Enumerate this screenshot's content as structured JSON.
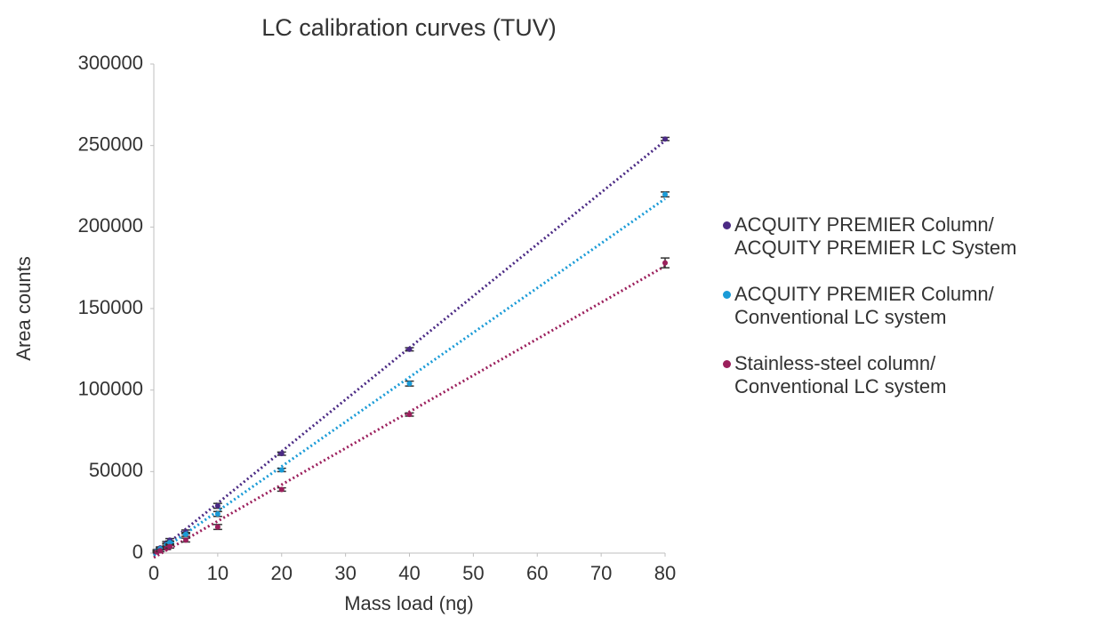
{
  "chart_data": {
    "type": "scatter",
    "title": "LC calibration curves (TUV)",
    "x_label": "Mass load (ng)",
    "y_label": "Area counts",
    "x": [
      0.5,
      1,
      2,
      2.5,
      5,
      10,
      20,
      40,
      80
    ],
    "series": [
      {
        "name": "ACQUITY PREMIER Column/\nACQUITY PREMIER LC System",
        "color": "#4b2a84",
        "values": [
          1600,
          3200,
          6300,
          8000,
          13000,
          29000,
          61000,
          125000,
          254000
        ],
        "errors": [
          500,
          600,
          800,
          900,
          1200,
          1500,
          1000,
          1000,
          1000
        ]
      },
      {
        "name": "ACQUITY PREMIER Column/\nConventional LC system",
        "color": "#1a9bd7",
        "values": [
          1300,
          2700,
          5200,
          6500,
          11500,
          24000,
          51000,
          104000,
          220000
        ],
        "errors": [
          500,
          600,
          800,
          900,
          1200,
          1500,
          1000,
          1500,
          1500
        ]
      },
      {
        "name": "Stainless-steel column/\nConventional LC system",
        "color": "#9b1f5c",
        "values": [
          700,
          1500,
          3000,
          4000,
          8000,
          16000,
          39000,
          85000,
          178000
        ],
        "errors": [
          500,
          600,
          800,
          900,
          1200,
          1500,
          1000,
          1000,
          3000
        ]
      }
    ],
    "xlim": [
      0,
      80
    ],
    "xticks": [
      0,
      10,
      20,
      30,
      40,
      50,
      60,
      70,
      80
    ],
    "ylim": [
      0,
      300000
    ],
    "yticks": [
      0,
      50000,
      100000,
      150000,
      200000,
      250000,
      300000
    ],
    "trendline": true
  }
}
